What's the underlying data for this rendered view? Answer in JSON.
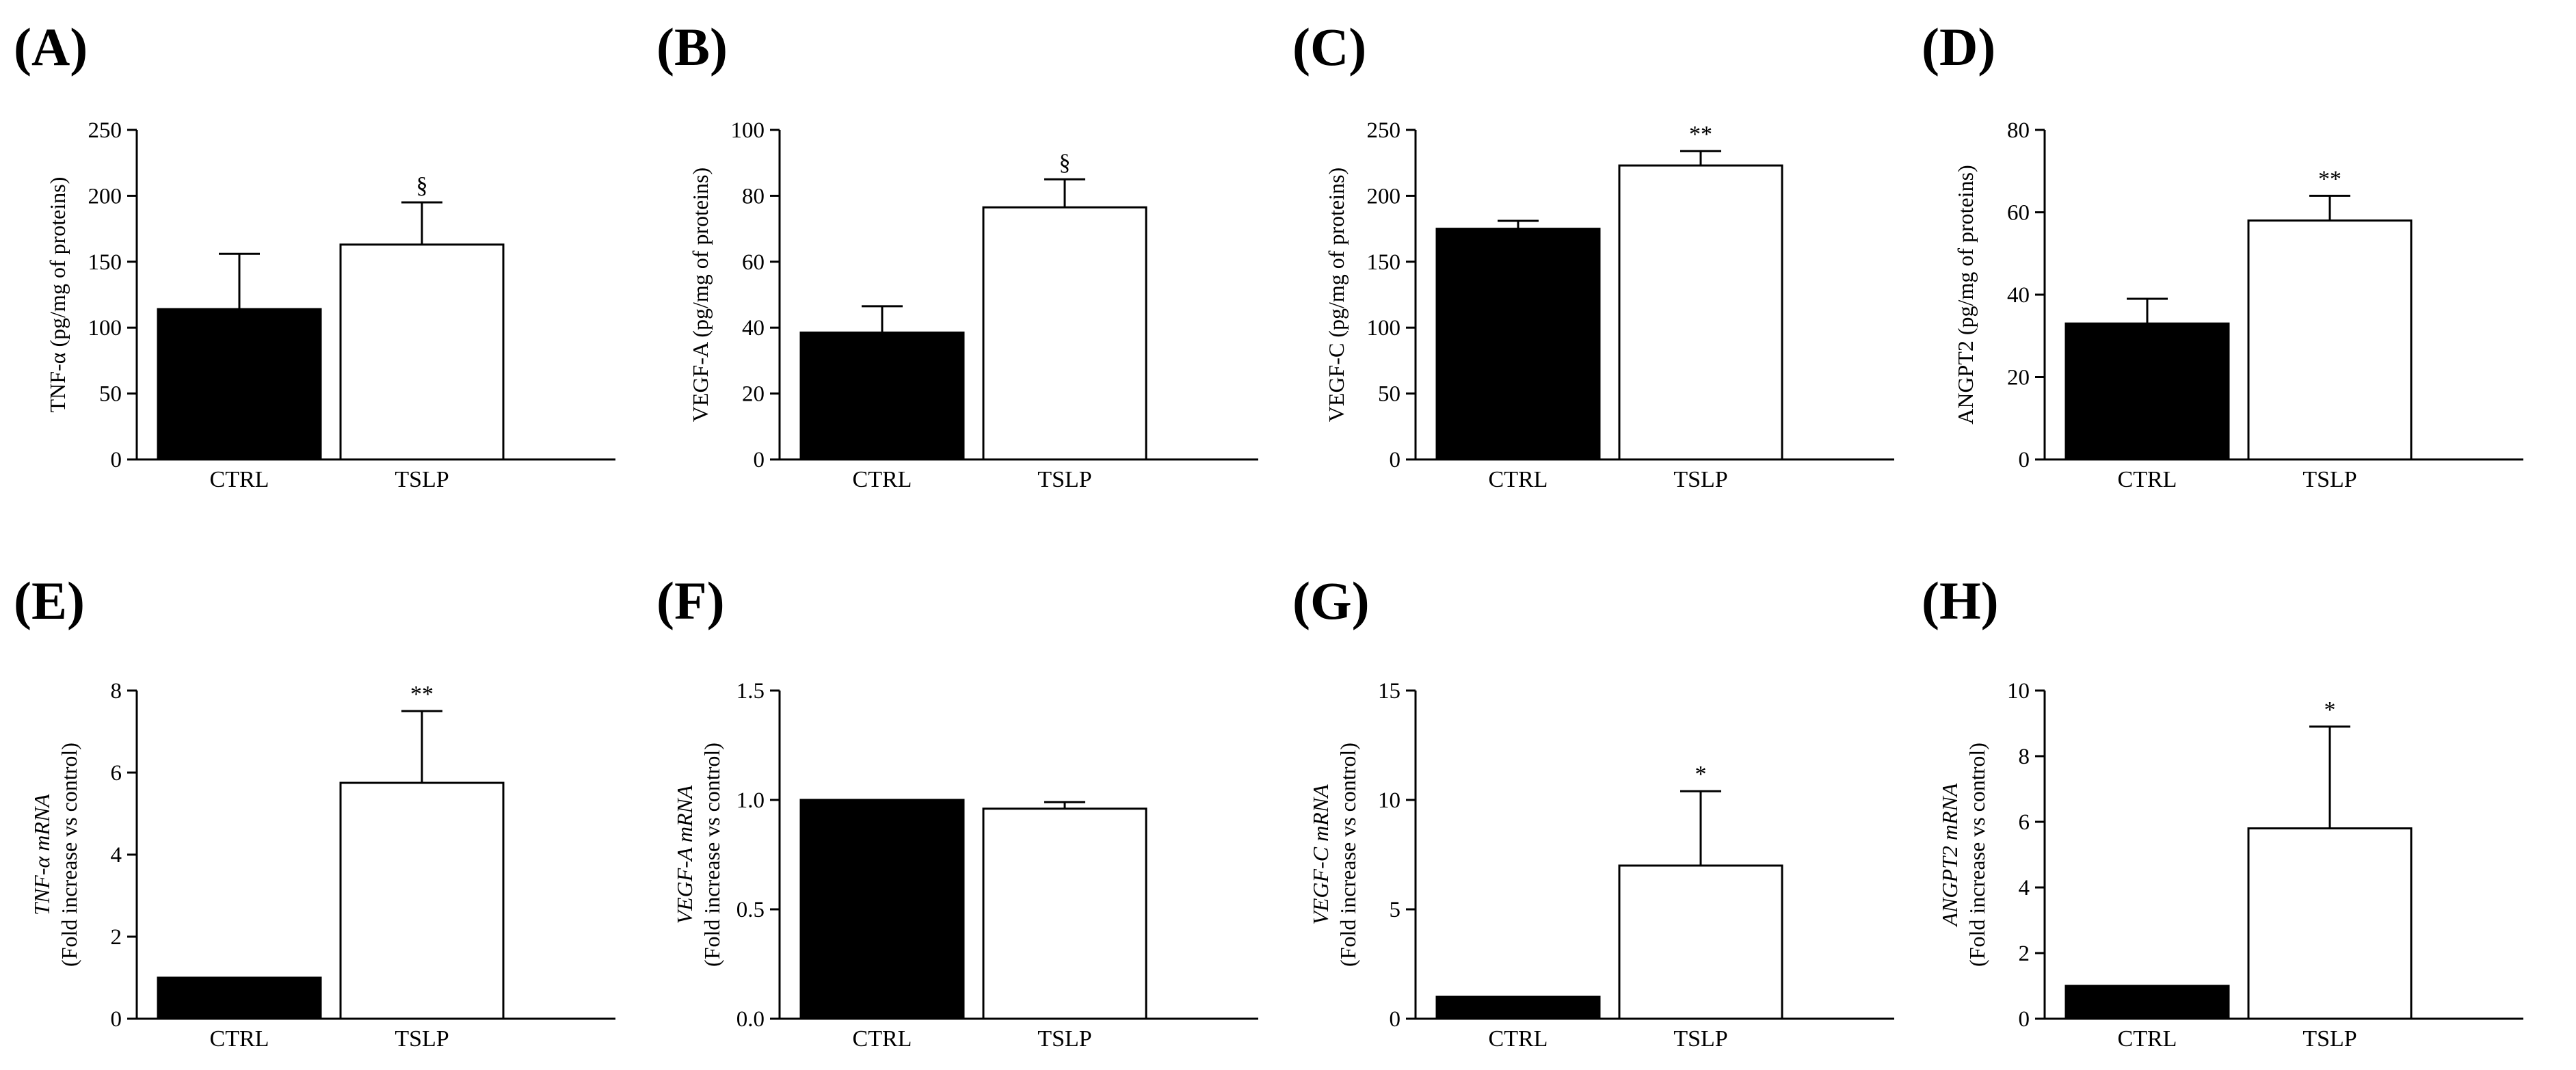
{
  "figure": {
    "background": "#ffffff",
    "bar_colors": {
      "CTRL": "#000000",
      "TSLP": "#ffffff"
    }
  },
  "chart_data": [
    {
      "id": "A",
      "panel_label": "(A)",
      "type": "bar",
      "categories": [
        "CTRL",
        "TSLP"
      ],
      "values": [
        114,
        163
      ],
      "errors": [
        42,
        32
      ],
      "significance": [
        "",
        "§"
      ],
      "ylabel": [
        {
          "text": "TNF-α (pg/mg of proteins)",
          "italic": false
        }
      ],
      "ylim": [
        0,
        250
      ],
      "yticks": [
        0,
        50,
        100,
        150,
        200,
        250
      ],
      "ytick_labels": [
        "0",
        "50",
        "100",
        "150",
        "200",
        "250"
      ]
    },
    {
      "id": "B",
      "panel_label": "(B)",
      "type": "bar",
      "categories": [
        "CTRL",
        "TSLP"
      ],
      "values": [
        38.5,
        76.5
      ],
      "errors": [
        8,
        8.5
      ],
      "significance": [
        "",
        "§"
      ],
      "ylabel": [
        {
          "text": "VEGF-A (pg/mg of proteins)",
          "italic": false
        }
      ],
      "ylim": [
        0,
        100
      ],
      "yticks": [
        0,
        20,
        40,
        60,
        80,
        100
      ],
      "ytick_labels": [
        "0",
        "20",
        "40",
        "60",
        "80",
        "100"
      ]
    },
    {
      "id": "C",
      "panel_label": "(C)",
      "type": "bar",
      "categories": [
        "CTRL",
        "TSLP"
      ],
      "values": [
        175,
        223
      ],
      "errors": [
        6,
        11
      ],
      "significance": [
        "",
        "**"
      ],
      "ylabel": [
        {
          "text": "VEGF-C (pg/mg of proteins)",
          "italic": false
        }
      ],
      "ylim": [
        0,
        250
      ],
      "yticks": [
        0,
        50,
        100,
        150,
        200,
        250
      ],
      "ytick_labels": [
        "0",
        "50",
        "100",
        "150",
        "200",
        "250"
      ]
    },
    {
      "id": "D",
      "panel_label": "(D)",
      "type": "bar",
      "categories": [
        "CTRL",
        "TSLP"
      ],
      "values": [
        33,
        58
      ],
      "errors": [
        6,
        6
      ],
      "significance": [
        "",
        "**"
      ],
      "ylabel": [
        {
          "text": "ANGPT2 (pg/mg of proteins)",
          "italic": false
        }
      ],
      "ylim": [
        0,
        80
      ],
      "yticks": [
        0,
        20,
        40,
        60,
        80
      ],
      "ytick_labels": [
        "0",
        "20",
        "40",
        "60",
        "80"
      ]
    },
    {
      "id": "E",
      "panel_label": "(E)",
      "type": "bar",
      "categories": [
        "CTRL",
        "TSLP"
      ],
      "values": [
        1,
        5.75
      ],
      "errors": [
        0,
        1.75
      ],
      "significance": [
        "",
        "**"
      ],
      "ylabel": [
        {
          "text": "TNF-α mRNA",
          "italic": true
        },
        {
          "text": "(Fold increase vs control)",
          "italic": false
        }
      ],
      "ylim": [
        0,
        8
      ],
      "yticks": [
        0,
        2,
        4,
        6,
        8
      ],
      "ytick_labels": [
        "0",
        "2",
        "4",
        "6",
        "8"
      ]
    },
    {
      "id": "F",
      "panel_label": "(F)",
      "type": "bar",
      "categories": [
        "CTRL",
        "TSLP"
      ],
      "values": [
        1,
        0.96
      ],
      "errors": [
        0,
        0.03
      ],
      "significance": [
        "",
        ""
      ],
      "ylabel": [
        {
          "text": "VEGF-A mRNA",
          "italic": true
        },
        {
          "text": "(Fold increase vs control)",
          "italic": false
        }
      ],
      "ylim": [
        0,
        1.5
      ],
      "yticks": [
        0,
        0.5,
        1.0,
        1.5
      ],
      "ytick_labels": [
        "0.0",
        "0.5",
        "1.0",
        "1.5"
      ]
    },
    {
      "id": "G",
      "panel_label": "(G)",
      "type": "bar",
      "categories": [
        "CTRL",
        "TSLP"
      ],
      "values": [
        1,
        7
      ],
      "errors": [
        0,
        3.4
      ],
      "significance": [
        "",
        "*"
      ],
      "ylabel": [
        {
          "text": "VEGF-C mRNA",
          "italic": true
        },
        {
          "text": "(Fold increase vs control)",
          "italic": false
        }
      ],
      "ylim": [
        0,
        15
      ],
      "yticks": [
        0,
        5,
        10,
        15
      ],
      "ytick_labels": [
        "0",
        "5",
        "10",
        "15"
      ]
    },
    {
      "id": "H",
      "panel_label": "(H)",
      "type": "bar",
      "categories": [
        "CTRL",
        "TSLP"
      ],
      "values": [
        1,
        5.8
      ],
      "errors": [
        0,
        3.1
      ],
      "significance": [
        "",
        "*"
      ],
      "ylabel": [
        {
          "text": "ANGPT2 mRNA",
          "italic": true
        },
        {
          "text": "(Fold increase vs control)",
          "italic": false
        }
      ],
      "ylim": [
        0,
        10
      ],
      "yticks": [
        0,
        2,
        4,
        6,
        8,
        10
      ],
      "ytick_labels": [
        "0",
        "2",
        "4",
        "6",
        "8",
        "10"
      ]
    }
  ]
}
